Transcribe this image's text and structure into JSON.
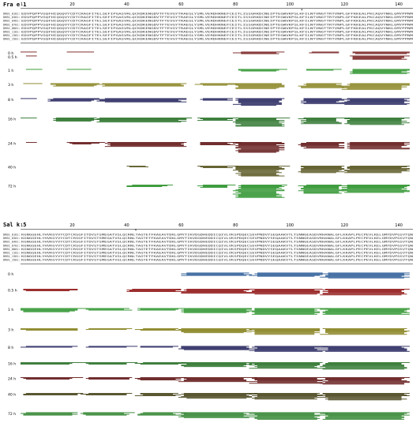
{
  "panels": [
    {
      "id": "fra",
      "title": "Fra e 1",
      "ticks": [
        "1",
        "20",
        "40",
        "60",
        "80",
        "100",
        "120",
        "140"
      ],
      "star_mark": "*",
      "alleles": [
        "DRB1_0101:",
        "DRB1_0301:",
        "DRB1_0401:",
        "DRB1_0701:",
        "DRB1_0801:",
        "DRB1_1101:",
        "DRB1_1301:",
        "DRB1_1501:"
      ],
      "sequence": "EDVPQPPVSQFHIQGQVYCDTCRAGFITELSEFIPGASVRLQCKDKENGDVTFTEVGYTRAEGLYSMLVERDHKNEFCEITLISSGRKDCNEIPTEGWVKPSLKFILNTVNGTTRTVNPLGFFKKEALPKCAQVYNKLGMYPPNM",
      "timepoints": [
        "0 h",
        "0.5 h",
        "1 h",
        "3 h",
        "8 h",
        "16 h",
        "24 h",
        "40 h",
        "72 h"
      ],
      "colors": {
        "0 h": "#6e0f0f",
        "0.5 h": "#6e0f0f",
        "1 h": "#1e8c1e",
        "3 h": "#7f7a12",
        "8 h": "#12124f",
        "16 h": "#1f6b1f",
        "24 h": "#5a0b0b",
        "40 h": "#4d4a12",
        "72 h": "#1e8c1e"
      }
    },
    {
      "id": "sal",
      "title": "Sal k 5",
      "ticks": [
        "1",
        "20",
        "40",
        "60",
        "80",
        "100",
        "120",
        "140"
      ],
      "star_mark": "*",
      "alleles": [
        "DRB1_0101:",
        "DRB1_0301:",
        "DRB1_0401:",
        "DRB1_0701:",
        "DRB1_0801:",
        "DRB1_1101:",
        "DRB1_1301:",
        "DRB1_1501:"
      ],
      "sequence": "KGNGGEHLYHVKGYVYCDTCRSGFITDVSTSMEGATVSLQCRNLTAGTETFKAEAVTDKLGMYTIKVDGDHEDDICQIVLVKSPDQECSEVPNDVYSEQAAKVTLTSNNGEASDVRHANALGFLKKAPLPECPEVLKELGMYDVPGSVTQN",
      "timepoints": [
        "0 h",
        "0.5 h",
        "1 h",
        "3 h",
        "8 h",
        "16 h",
        "24 h",
        "40 h",
        "72 h"
      ],
      "colors": {
        "0 h": "#1b4f8f",
        "0.5 h": "#8b0a0a",
        "1 h": "#1e8c1e",
        "3 h": "#7f7a12",
        "8 h": "#12124f",
        "16 h": "#1f6b1f",
        "24 h": "#5a0b0b",
        "40 h": "#3d3a0e",
        "72 h": "#1f7a1f"
      }
    }
  ]
}
